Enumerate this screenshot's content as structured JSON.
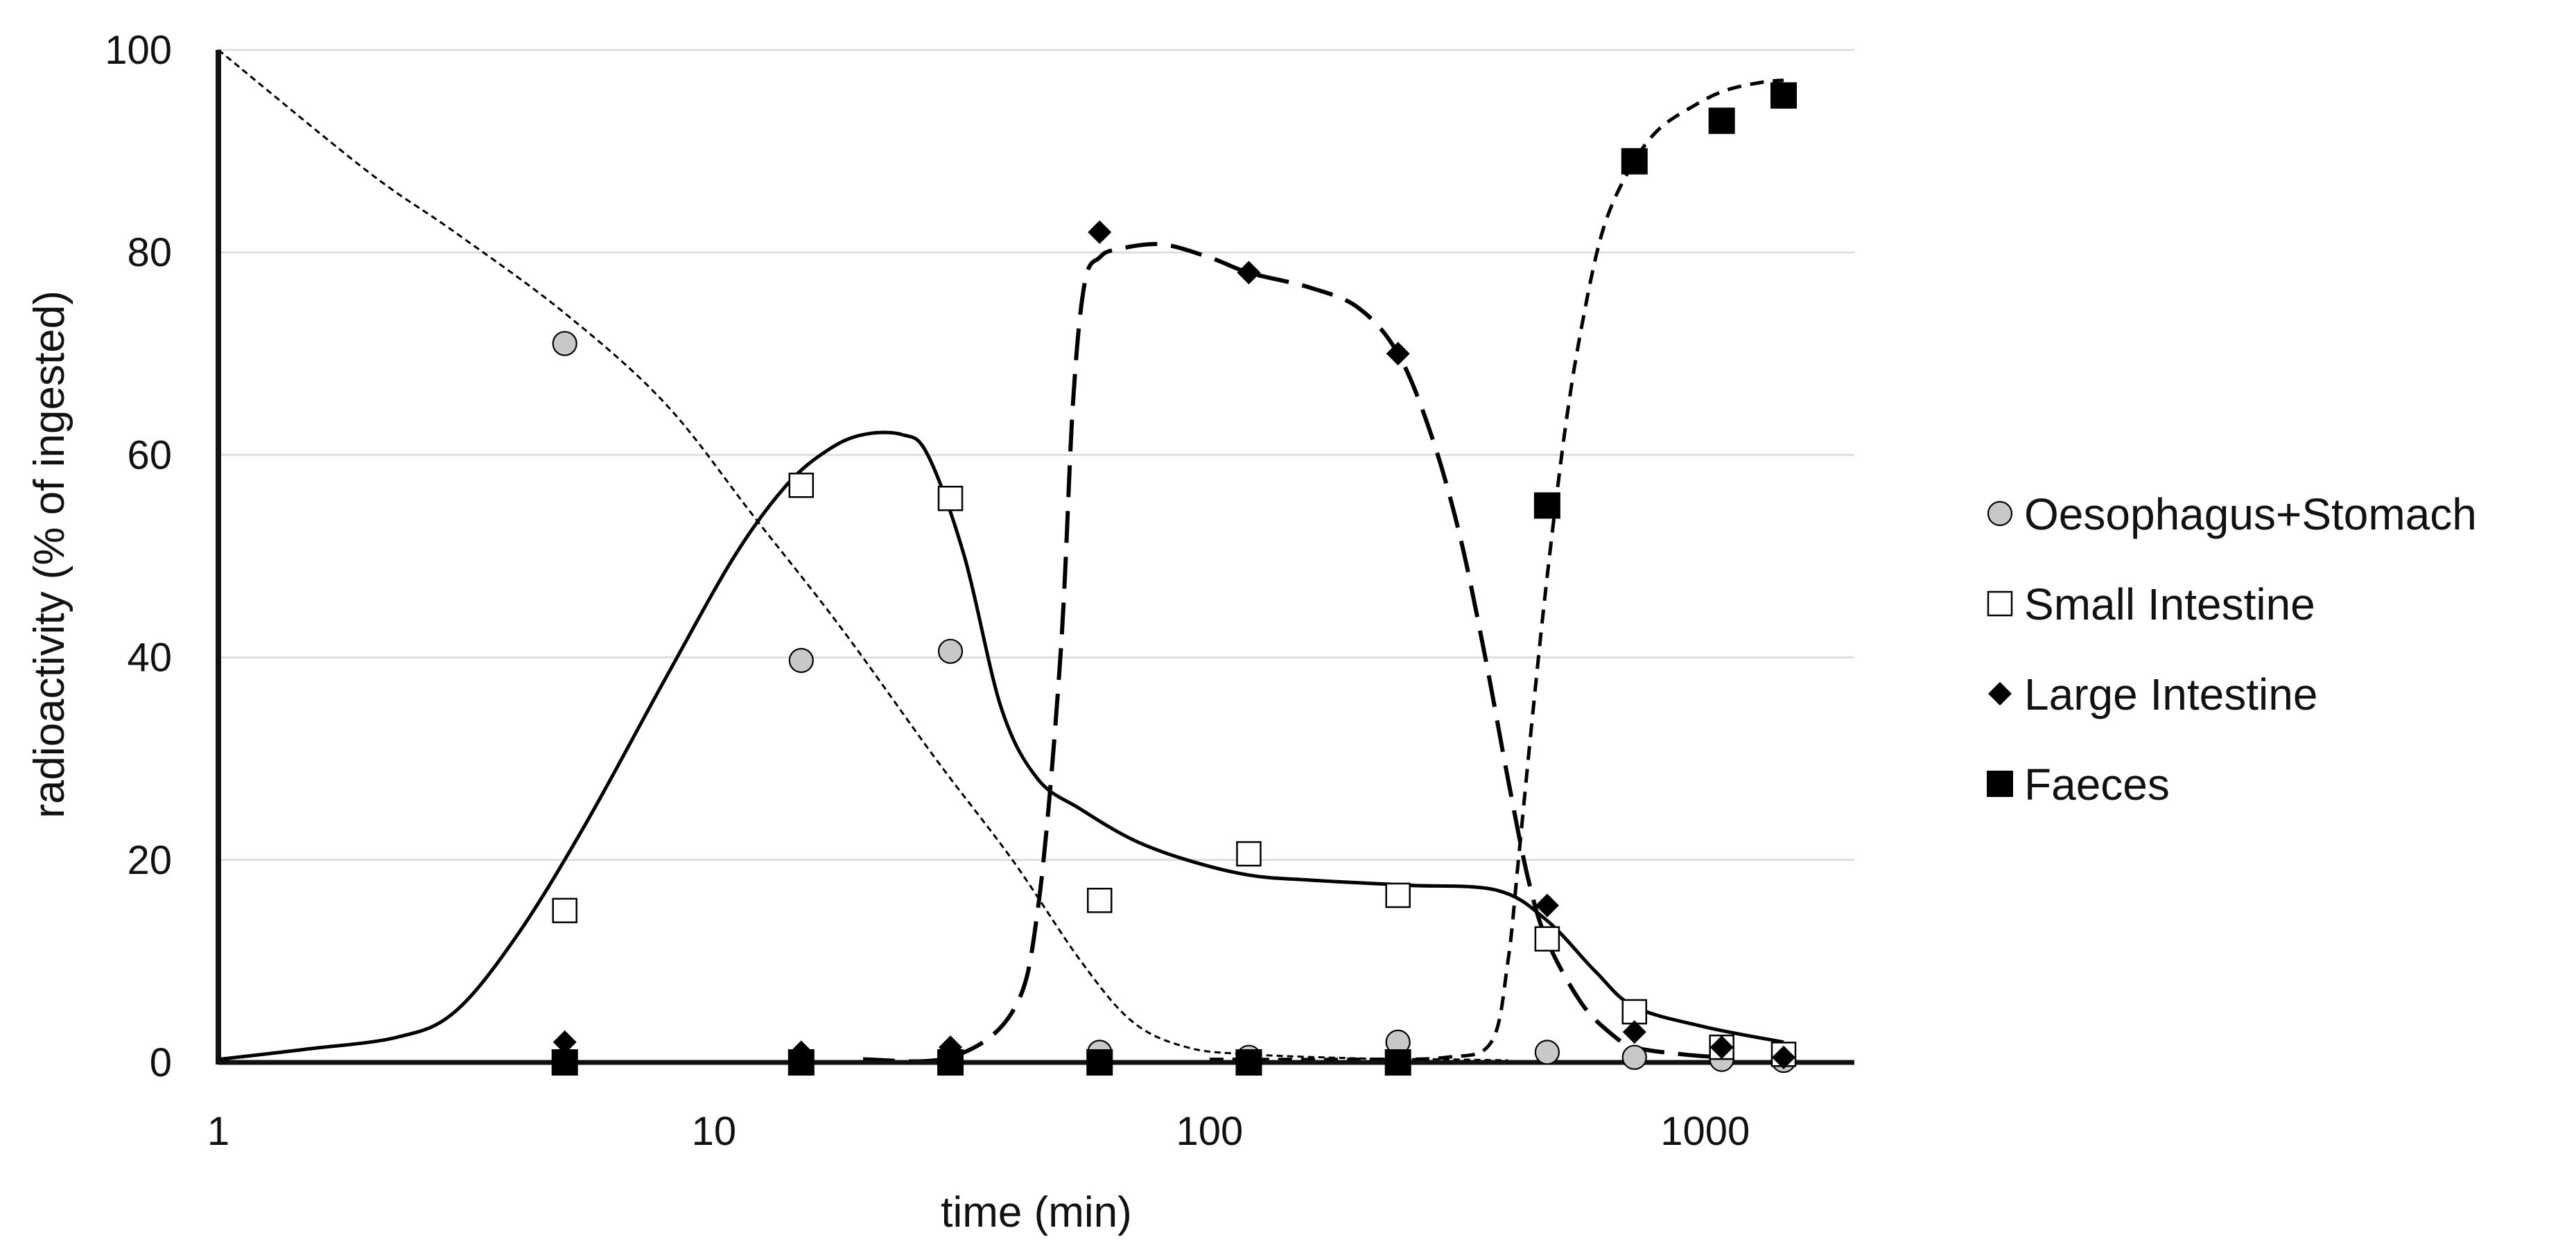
{
  "chart_data": {
    "type": "scatter",
    "title": "",
    "xlabel": "time (min)",
    "ylabel": "radioactivity (% of ingested)",
    "xscale": "log",
    "xlim": [
      1,
      2000
    ],
    "ylim": [
      0,
      100
    ],
    "x_ticks": [
      1,
      10,
      100,
      1000
    ],
    "x_tick_labels": [
      "1",
      "10",
      "100",
      "1000"
    ],
    "y_ticks": [
      0,
      20,
      40,
      60,
      80,
      100
    ],
    "y_tick_labels": [
      "0",
      "20",
      "40",
      "60",
      "80",
      "100"
    ],
    "grid": "horizontal",
    "legend_position": "right",
    "colors": {
      "axis": "#111111",
      "grid": "#d9d9d9",
      "marker_gray": "#c8c8c8",
      "black": "#000000",
      "white": "#ffffff"
    },
    "series": [
      {
        "name": "Oesophagus+Stomach",
        "marker": "circle-gray",
        "x": [
          5,
          15,
          30,
          60,
          120,
          240,
          480,
          720,
          1080,
          1440
        ],
        "y": [
          71,
          39.7,
          40.6,
          1.0,
          0.5,
          2.0,
          1.0,
          0.5,
          0.3,
          0.2
        ]
      },
      {
        "name": "Small Intestine",
        "marker": "square-open",
        "x": [
          5,
          15,
          30,
          60,
          120,
          240,
          480,
          720,
          1080,
          1440
        ],
        "y": [
          15,
          57,
          55.7,
          16,
          20.6,
          16.5,
          12.2,
          5,
          1.5,
          0.8
        ]
      },
      {
        "name": "Large Intestine",
        "marker": "diamond",
        "x": [
          5,
          15,
          30,
          60,
          120,
          240,
          480,
          720,
          1080,
          1440
        ],
        "y": [
          2,
          1,
          1.5,
          82,
          78,
          70,
          15.5,
          3,
          1.5,
          0.5
        ]
      },
      {
        "name": "Faeces",
        "marker": "square-filled",
        "x": [
          5,
          15,
          30,
          60,
          120,
          240,
          480,
          720,
          1080,
          1440
        ],
        "y": [
          0,
          0,
          0,
          0,
          0,
          0,
          55,
          89,
          93,
          95.5
        ]
      }
    ],
    "fitted_curves": [
      {
        "series": "Oesophagus+Stomach",
        "style": "fine-dotted",
        "x": [
          1,
          2,
          3,
          5,
          8,
          12,
          18,
          28,
          40,
          55,
          70,
          90,
          120,
          200,
          300,
          400
        ],
        "y": [
          100,
          88,
          82,
          74,
          65,
          54,
          43,
          30,
          20,
          10,
          4,
          1.5,
          0.8,
          0.4,
          0.3,
          0.2
        ]
      },
      {
        "series": "Small Intestine",
        "style": "solid",
        "x": [
          1,
          1.5,
          2.3,
          3,
          4,
          5.5,
          8,
          11,
          14,
          17,
          20,
          24,
          27,
          32,
          38,
          45,
          55,
          70,
          90,
          120,
          160,
          250,
          380,
          480,
          600,
          720,
          1000,
          1440
        ],
        "y": [
          0.3,
          1.3,
          2.5,
          5,
          12.5,
          23.5,
          38,
          50,
          57,
          60.5,
          62,
          62,
          60,
          50,
          35,
          28,
          25,
          22,
          20,
          18.5,
          18,
          17.5,
          17,
          14,
          9,
          5.5,
          3.5,
          2
        ]
      },
      {
        "series": "Large Intestine",
        "style": "long-dash",
        "x": [
          20,
          30,
          40,
          45,
          50,
          53,
          56,
          60,
          65,
          80,
          100,
          120,
          160,
          200,
          240,
          280,
          320,
          360,
          400,
          440,
          480,
          560,
          640,
          720,
          900,
          1080
        ],
        "y": [
          0.3,
          0.5,
          5,
          15,
          40,
          65,
          77,
          79.5,
          80.3,
          80.8,
          79.5,
          78,
          76.5,
          74.5,
          70,
          62,
          52,
          40,
          28,
          18,
          12,
          6,
          3,
          1.5,
          0.8,
          0.5
        ]
      },
      {
        "series": "Faeces",
        "style": "short-dash",
        "x": [
          100,
          200,
          300,
          370,
          400,
          420,
          450,
          480,
          520,
          560,
          620,
          700,
          800,
          950,
          1100,
          1300,
          1440
        ],
        "y": [
          0.3,
          0.3,
          0.5,
          2,
          10,
          20,
          35,
          48,
          62,
          72,
          82,
          88,
          92,
          94.5,
          96,
          96.8,
          97
        ]
      }
    ]
  }
}
